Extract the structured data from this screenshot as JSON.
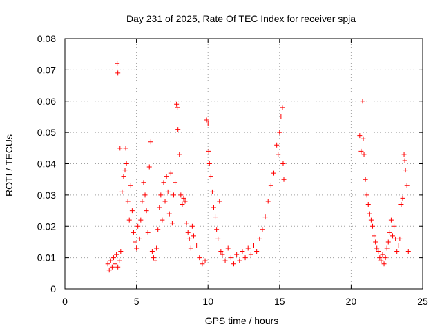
{
  "chart_data": {
    "type": "scatter",
    "title": "Day 231 of 2025, Rate Of TEC Index for receiver spja",
    "xlabel": "GPS time / hours",
    "ylabel": "ROTI / TECUs",
    "xlim": [
      0,
      25
    ],
    "ylim": [
      0,
      0.08
    ],
    "x_ticks": [
      "0",
      "5",
      "10",
      "15",
      "20",
      "25"
    ],
    "y_ticks": [
      "0",
      "0.01",
      "0.02",
      "0.03",
      "0.04",
      "0.05",
      "0.06",
      "0.07",
      "0.08"
    ],
    "grid": true,
    "marker": "+",
    "color": "#ff0000",
    "series": [
      {
        "points": [
          [
            3.0,
            0.008
          ],
          [
            3.1,
            0.006
          ],
          [
            3.2,
            0.009
          ],
          [
            3.3,
            0.007
          ],
          [
            3.4,
            0.01
          ],
          [
            3.5,
            0.008
          ],
          [
            3.6,
            0.011
          ],
          [
            3.7,
            0.007
          ],
          [
            3.8,
            0.009
          ],
          [
            3.9,
            0.012
          ],
          [
            3.65,
            0.072
          ],
          [
            3.7,
            0.069
          ],
          [
            3.85,
            0.045
          ],
          [
            4.0,
            0.031
          ],
          [
            4.1,
            0.036
          ],
          [
            4.2,
            0.038
          ],
          [
            4.25,
            0.045
          ],
          [
            4.3,
            0.04
          ],
          [
            4.4,
            0.028
          ],
          [
            4.5,
            0.022
          ],
          [
            4.6,
            0.033
          ],
          [
            4.7,
            0.025
          ],
          [
            4.8,
            0.018
          ],
          [
            4.9,
            0.015
          ],
          [
            5.0,
            0.013
          ],
          [
            5.1,
            0.02
          ],
          [
            5.2,
            0.016
          ],
          [
            5.3,
            0.022
          ],
          [
            5.4,
            0.028
          ],
          [
            5.5,
            0.034
          ],
          [
            5.6,
            0.03
          ],
          [
            5.7,
            0.025
          ],
          [
            5.8,
            0.018
          ],
          [
            5.9,
            0.039
          ],
          [
            6.0,
            0.047
          ],
          [
            6.1,
            0.012
          ],
          [
            6.2,
            0.01
          ],
          [
            6.3,
            0.009
          ],
          [
            6.4,
            0.013
          ],
          [
            6.5,
            0.019
          ],
          [
            6.6,
            0.026
          ],
          [
            6.7,
            0.03
          ],
          [
            6.8,
            0.022
          ],
          [
            6.9,
            0.034
          ],
          [
            7.0,
            0.028
          ],
          [
            7.1,
            0.036
          ],
          [
            7.2,
            0.031
          ],
          [
            7.3,
            0.024
          ],
          [
            7.4,
            0.037
          ],
          [
            7.5,
            0.021
          ],
          [
            7.6,
            0.03
          ],
          [
            7.7,
            0.034
          ],
          [
            7.8,
            0.059
          ],
          [
            7.85,
            0.058
          ],
          [
            7.9,
            0.051
          ],
          [
            8.0,
            0.043
          ],
          [
            8.1,
            0.03
          ],
          [
            8.2,
            0.027
          ],
          [
            8.3,
            0.029
          ],
          [
            8.4,
            0.028
          ],
          [
            8.5,
            0.021
          ],
          [
            8.6,
            0.018
          ],
          [
            8.7,
            0.016
          ],
          [
            8.8,
            0.013
          ],
          [
            8.9,
            0.02
          ],
          [
            9.0,
            0.017
          ],
          [
            9.2,
            0.014
          ],
          [
            9.4,
            0.01
          ],
          [
            9.6,
            0.008
          ],
          [
            9.8,
            0.009
          ],
          [
            9.9,
            0.054
          ],
          [
            10.0,
            0.053
          ],
          [
            10.05,
            0.044
          ],
          [
            10.1,
            0.04
          ],
          [
            10.2,
            0.036
          ],
          [
            10.3,
            0.031
          ],
          [
            10.4,
            0.026
          ],
          [
            10.5,
            0.023
          ],
          [
            10.6,
            0.019
          ],
          [
            10.7,
            0.016
          ],
          [
            10.8,
            0.028
          ],
          [
            10.9,
            0.012
          ],
          [
            11.0,
            0.011
          ],
          [
            11.2,
            0.009
          ],
          [
            11.4,
            0.013
          ],
          [
            11.6,
            0.01
          ],
          [
            11.8,
            0.008
          ],
          [
            12.0,
            0.011
          ],
          [
            12.2,
            0.009
          ],
          [
            12.4,
            0.012
          ],
          [
            12.6,
            0.01
          ],
          [
            12.8,
            0.013
          ],
          [
            13.0,
            0.011
          ],
          [
            13.2,
            0.014
          ],
          [
            13.4,
            0.012
          ],
          [
            13.6,
            0.016
          ],
          [
            13.8,
            0.019
          ],
          [
            14.0,
            0.023
          ],
          [
            14.2,
            0.028
          ],
          [
            14.4,
            0.033
          ],
          [
            14.6,
            0.037
          ],
          [
            14.8,
            0.046
          ],
          [
            14.9,
            0.043
          ],
          [
            15.0,
            0.05
          ],
          [
            15.1,
            0.055
          ],
          [
            15.2,
            0.058
          ],
          [
            15.25,
            0.04
          ],
          [
            15.3,
            0.035
          ],
          [
            20.6,
            0.049
          ],
          [
            20.7,
            0.044
          ],
          [
            20.8,
            0.06
          ],
          [
            20.85,
            0.048
          ],
          [
            20.9,
            0.043
          ],
          [
            21.0,
            0.035
          ],
          [
            21.1,
            0.03
          ],
          [
            21.2,
            0.027
          ],
          [
            21.3,
            0.024
          ],
          [
            21.4,
            0.022
          ],
          [
            21.5,
            0.02
          ],
          [
            21.6,
            0.017
          ],
          [
            21.7,
            0.015
          ],
          [
            21.8,
            0.013
          ],
          [
            21.9,
            0.012
          ],
          [
            22.0,
            0.01
          ],
          [
            22.1,
            0.009
          ],
          [
            22.2,
            0.011
          ],
          [
            22.3,
            0.008
          ],
          [
            22.4,
            0.01
          ],
          [
            22.5,
            0.013
          ],
          [
            22.6,
            0.015
          ],
          [
            22.7,
            0.018
          ],
          [
            22.8,
            0.022
          ],
          [
            22.9,
            0.017
          ],
          [
            23.0,
            0.02
          ],
          [
            23.1,
            0.016
          ],
          [
            23.2,
            0.012
          ],
          [
            23.3,
            0.014
          ],
          [
            23.4,
            0.016
          ],
          [
            23.5,
            0.027
          ],
          [
            23.6,
            0.029
          ],
          [
            23.7,
            0.043
          ],
          [
            23.75,
            0.041
          ],
          [
            23.8,
            0.038
          ],
          [
            23.9,
            0.033
          ],
          [
            24.0,
            0.012
          ]
        ]
      }
    ]
  }
}
